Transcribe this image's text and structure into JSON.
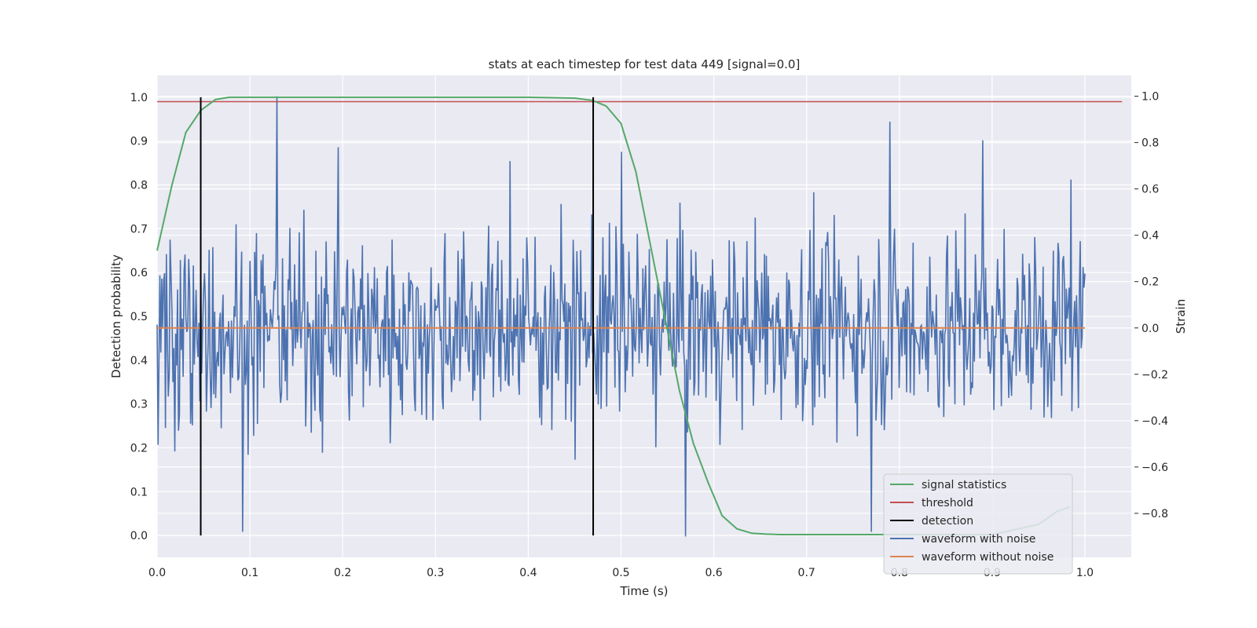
{
  "chart_data": {
    "type": "line",
    "title": "stats at each timestep for test data 449 [signal=0.0]",
    "xlabel": "Time (s)",
    "ylabel_left": "Detection probability",
    "ylabel_right": "Strain",
    "xlim": [
      0.0,
      1.05
    ],
    "ylim_left": [
      -0.05,
      1.05
    ],
    "ylim_right": [
      -0.99,
      1.09
    ],
    "xticks": [
      "0.0",
      "0.1",
      "0.2",
      "0.3",
      "0.4",
      "0.5",
      "0.6",
      "0.7",
      "0.8",
      "0.9",
      "1.0"
    ],
    "yticks_left": [
      "0.0",
      "0.1",
      "0.2",
      "0.3",
      "0.4",
      "0.5",
      "0.6",
      "0.7",
      "0.8",
      "0.9",
      "1.0"
    ],
    "yticks_right": [
      "−0.8",
      "−0.6",
      "−0.4",
      "−0.2",
      "0.0",
      "0.2",
      "0.4",
      "0.6",
      "0.8",
      "1.0"
    ],
    "grid": true,
    "legend_position": "bottom-right",
    "colors": {
      "background": "#eaeaf2",
      "grid": "#ffffff",
      "signal_statistics": "#55a868",
      "threshold": "#c44e52",
      "detection": "#000000",
      "waveform_with_noise": "#4c72b0",
      "waveform_without_noise": "#dd8452"
    },
    "series": [
      {
        "name": "signal statistics",
        "axis": "left",
        "x": [
          0.0,
          0.016,
          0.031,
          0.047,
          0.063,
          0.078,
          0.094,
          0.11,
          0.2,
          0.3,
          0.4,
          0.45,
          0.469,
          0.484,
          0.5,
          0.516,
          0.531,
          0.547,
          0.563,
          0.578,
          0.594,
          0.609,
          0.625,
          0.641,
          0.656,
          0.672,
          0.7,
          0.75,
          0.8,
          0.85,
          0.9,
          0.95,
          0.97,
          0.984
        ],
        "y": [
          0.65,
          0.8,
          0.92,
          0.97,
          0.995,
          1.0,
          1.0,
          1.0,
          1.0,
          1.0,
          1.0,
          0.998,
          0.993,
          0.98,
          0.94,
          0.83,
          0.67,
          0.5,
          0.33,
          0.21,
          0.12,
          0.045,
          0.015,
          0.005,
          0.003,
          0.002,
          0.002,
          0.002,
          0.002,
          0.002,
          0.002,
          0.025,
          0.055,
          0.065
        ]
      },
      {
        "name": "threshold",
        "axis": "left",
        "x": [
          0.0,
          1.04
        ],
        "y": [
          0.99,
          0.99
        ]
      },
      {
        "name": "detection",
        "axis": "left",
        "x_positions": [
          0.047,
          0.47
        ],
        "y_range": [
          0.0,
          1.0
        ]
      },
      {
        "name": "waveform with noise",
        "axis": "right",
        "x_range": [
          0.0,
          1.0
        ],
        "n_points": 1000,
        "approx_mean": 0.0,
        "approx_std": 0.27,
        "approx_min": -0.9,
        "approx_max": 1.0,
        "notable_points": [
          {
            "x": 0.129,
            "y": 1.0
          },
          {
            "x": 0.092,
            "y": -0.88
          },
          {
            "x": 0.195,
            "y": 0.78
          },
          {
            "x": 0.38,
            "y": 0.72
          },
          {
            "x": 0.5,
            "y": 0.76
          },
          {
            "x": 0.57,
            "y": -0.9
          },
          {
            "x": 0.77,
            "y": -0.88
          },
          {
            "x": 0.79,
            "y": 0.89
          },
          {
            "x": 0.89,
            "y": 0.81
          },
          {
            "x": 0.985,
            "y": 0.64
          }
        ]
      },
      {
        "name": "waveform without noise",
        "axis": "right",
        "x": [
          0.0,
          1.0
        ],
        "y": [
          0.0,
          0.0
        ]
      }
    ]
  }
}
